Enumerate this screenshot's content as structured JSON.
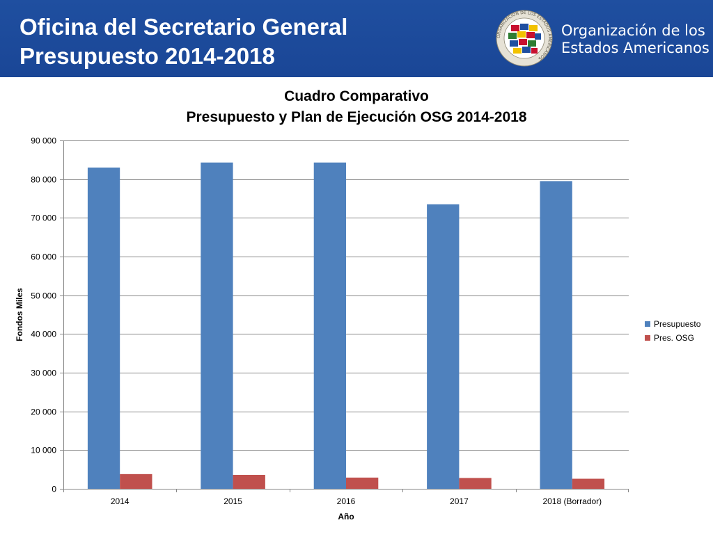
{
  "header": {
    "title_line1": "Oficina del Secretario General",
    "title_line2": "Presupuesto 2014-2018",
    "org_line1": "Organización de los",
    "org_line2": "Estados Americanos",
    "seal_text": "ORGANIZACIÓN DE LOS ESTADOS AMERICANOS",
    "background_color": "#1a4696"
  },
  "chart_data": {
    "type": "bar",
    "title": "Cuadro Comparativo",
    "subtitle": "Presupuesto y Plan de Ejecución OSG 2014-2018",
    "xlabel": "Año",
    "ylabel": "Fondos Miles",
    "categories": [
      "2014",
      "2015",
      "2016",
      "2017",
      "2018 (Borrador)"
    ],
    "series": [
      {
        "name": "Presupuesto",
        "color": "#4f81bd",
        "values": [
          83000,
          84300,
          84300,
          73500,
          79500
        ]
      },
      {
        "name": "Pres. OSG",
        "color": "#c0504d",
        "values": [
          3800,
          3600,
          2900,
          2800,
          2600
        ]
      }
    ],
    "ylim": [
      0,
      90000
    ],
    "yticks": [
      0,
      10000,
      20000,
      30000,
      40000,
      50000,
      60000,
      70000,
      80000,
      90000
    ],
    "ytick_labels": [
      "0",
      "10 000",
      "20 000",
      "30 000",
      "40 000",
      "50 000",
      "60 000",
      "70 000",
      "80 000",
      "90 000"
    ],
    "grid": true,
    "legend_position": "right"
  }
}
